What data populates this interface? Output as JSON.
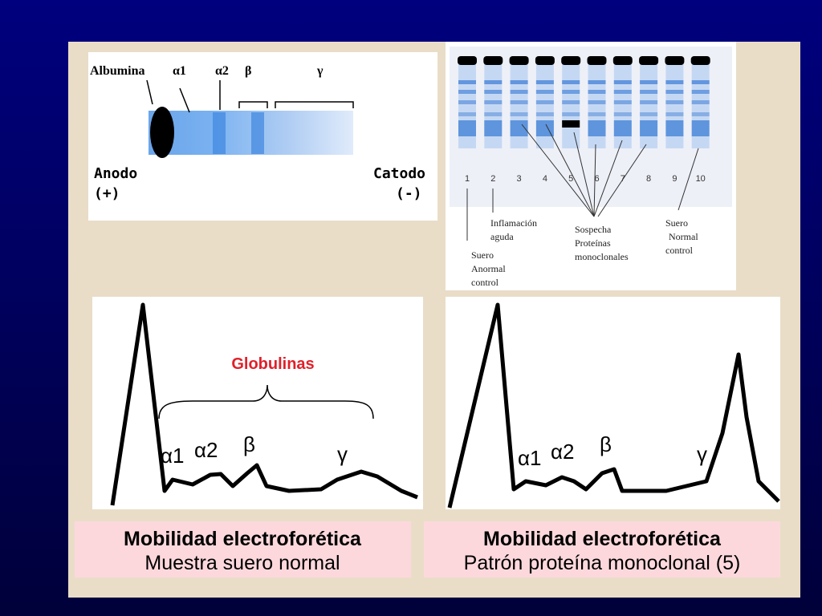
{
  "gel_left": {
    "labels": [
      "Albumina",
      "α1",
      "α2",
      "β",
      "γ"
    ],
    "anode": [
      "Anodo",
      "(+)"
    ],
    "cathode": [
      "Catodo",
      "(-)"
    ]
  },
  "gel_right": {
    "lanes": [
      "1",
      "2",
      "3",
      "4",
      "5",
      "6",
      "7",
      "8",
      "9",
      "10"
    ],
    "annotations": {
      "inflammation": [
        "Inflamación",
        "aguda"
      ],
      "suspected": [
        "Sospecha",
        "Proteínas",
        "monoclonales"
      ],
      "normal": [
        "Suero",
        "Normal",
        "control"
      ],
      "abnormal": [
        "Suero",
        "Anormal",
        "control"
      ]
    }
  },
  "panels": [
    {
      "title": "Globulinas",
      "peaks": [
        "α1",
        "α2",
        "β",
        "γ"
      ],
      "caption": {
        "title": "Mobilidad electroforética",
        "subtitle": "Muestra suero normal"
      }
    },
    {
      "peaks": [
        "α1",
        "α2",
        "β",
        "γ"
      ],
      "caption": {
        "title": "Mobilidad electroforética",
        "subtitle": "Patrón proteína monoclonal (5)"
      }
    }
  ]
}
